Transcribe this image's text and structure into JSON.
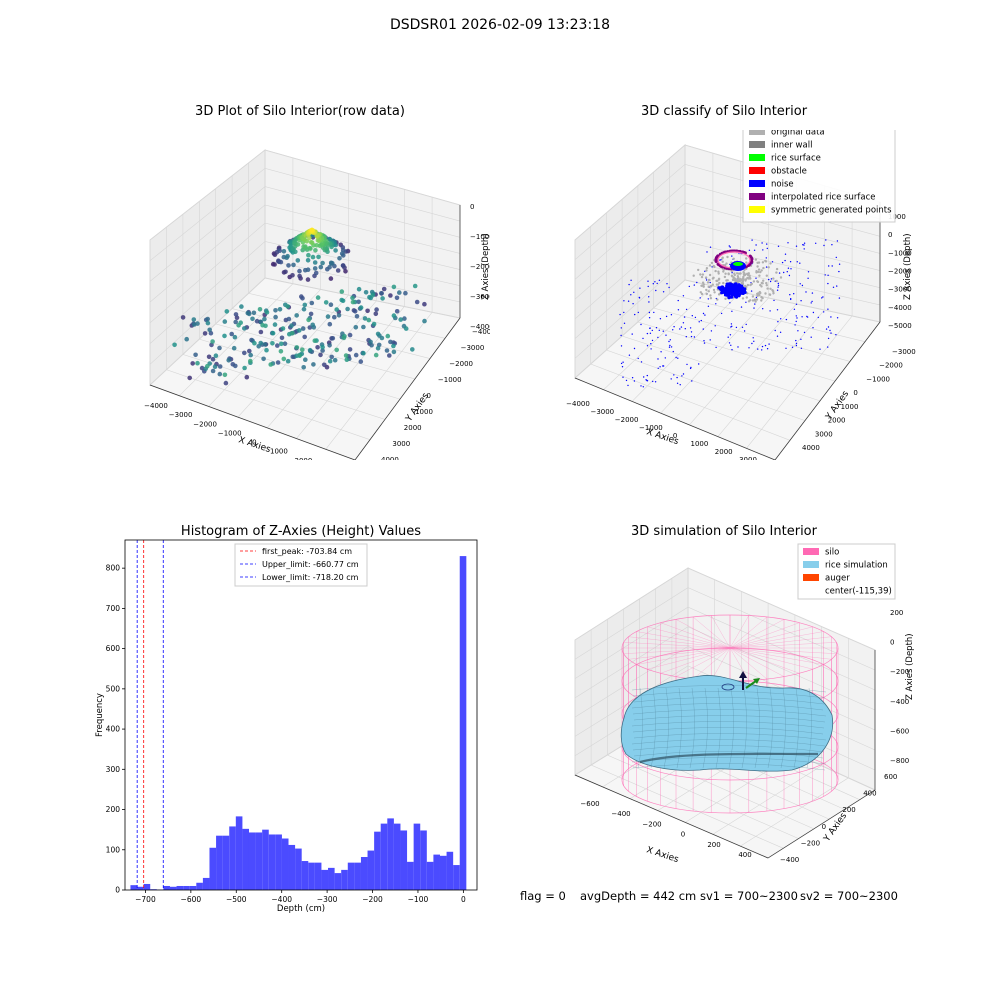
{
  "figure_title": "DSDSR01 2026-02-09 13:23:18",
  "chart_data": [
    {
      "type": "scatter",
      "projection": "3d",
      "title": "3D Plot of Silo Interior(row data)",
      "xlabel": "X Axies",
      "ylabel": "Y Axies",
      "zlabel": "Z Axies (Depth)",
      "x_ticks": [
        "−4000",
        "−3000",
        "−2000",
        "−1000",
        "0",
        "1000",
        "2000",
        "3000"
      ],
      "y_ticks": [
        "−4000",
        "−3000",
        "−2000",
        "−1000",
        "0",
        "1000",
        "2000",
        "3000",
        "4000"
      ],
      "z_ticks": [
        "0",
        "−1000",
        "−2000",
        "−3000",
        "−4000"
      ],
      "colormap": "viridis",
      "grid": true
    },
    {
      "type": "scatter",
      "projection": "3d",
      "title": "3D classify of Silo Interior",
      "xlabel": "X Axies",
      "ylabel": "Y Axies",
      "zlabel": "Z Axies (Depth)",
      "x_ticks": [
        "−4000",
        "−3000",
        "−2000",
        "−1000",
        "0",
        "1000",
        "2000",
        "3000"
      ],
      "y_ticks": [
        "−3000",
        "−2000",
        "−1000",
        "0",
        "1000",
        "2000",
        "3000",
        "4000"
      ],
      "z_ticks": [
        "1000",
        "0",
        "−1000",
        "−2000",
        "−3000",
        "−4000",
        "−5000"
      ],
      "legend_position": "top-right",
      "legend": [
        {
          "label": "original data",
          "color": "#b0b0b0"
        },
        {
          "label": "inner wall",
          "color": "#808080"
        },
        {
          "label": "rice surface",
          "color": "#00ff00"
        },
        {
          "label": "obstacle",
          "color": "#ff0000"
        },
        {
          "label": "noise",
          "color": "#0000ff"
        },
        {
          "label": "interpolated rice surface",
          "color": "#800080"
        },
        {
          "label": "symmetric generated points",
          "color": "#ffff00"
        }
      ],
      "grid": true
    },
    {
      "type": "bar",
      "title": "Histogram of Z-Axies (Height) Values",
      "xlabel": "Depth (cm)",
      "ylabel": "Frequency",
      "xlim": [
        -745,
        30
      ],
      "ylim": [
        0,
        870
      ],
      "x_ticks": [
        -700,
        -600,
        -500,
        -400,
        -300,
        -200,
        -100,
        0
      ],
      "x_tick_labels": [
        "−700",
        "−600",
        "−500",
        "−400",
        "−300",
        "−200",
        "−100",
        "0"
      ],
      "y_ticks": [
        0,
        100,
        200,
        300,
        400,
        500,
        600,
        700,
        800
      ],
      "bar_color": "#4b4bff",
      "bin_width": 14.5,
      "bin_start": -733,
      "counts": [
        12,
        8,
        15,
        2,
        1,
        10,
        8,
        10,
        10,
        10,
        18,
        30,
        105,
        135,
        135,
        158,
        183,
        152,
        143,
        143,
        150,
        138,
        138,
        128,
        112,
        103,
        72,
        68,
        68,
        50,
        55,
        42,
        50,
        68,
        68,
        82,
        98,
        145,
        165,
        178,
        165,
        148,
        70,
        165,
        148,
        70,
        88,
        85,
        95,
        62,
        830
      ],
      "vlines": [
        {
          "label": "first_peak: -703.84 cm",
          "x": -703.84,
          "color": "#ff0000"
        },
        {
          "label": "Upper_limit: -660.77 cm",
          "x": -660.77,
          "color": "#0000ff"
        },
        {
          "label": "Lower_limit: -718.20 cm",
          "x": -718.2,
          "color": "#0000ff"
        }
      ],
      "legend_position": "top-center"
    },
    {
      "type": "surface",
      "projection": "3d",
      "title": "3D simulation of Silo Interior",
      "xlabel": "X Axies",
      "ylabel": "Y Axies",
      "zlabel": "Z Axies (Depth)",
      "x_ticks": [
        "−600",
        "−400",
        "−200",
        "0",
        "200",
        "400"
      ],
      "y_ticks": [
        "−400",
        "−200",
        "0",
        "200",
        "400",
        "600"
      ],
      "z_ticks": [
        "200",
        "0",
        "−200",
        "−400",
        "−600",
        "−800"
      ],
      "legend_position": "top-right",
      "legend": [
        {
          "label": "silo",
          "color": "#ff69b4"
        },
        {
          "label": "rice simulation",
          "color": "#87ceeb"
        },
        {
          "label": "auger",
          "color": "#ff4500"
        },
        {
          "label": "center(-115,39)",
          "color": ""
        }
      ],
      "grid": true
    }
  ],
  "status": {
    "flag": "flag = 0",
    "avg_depth": "avgDepth = 442 cm",
    "sv1": "sv1 = 700~2300",
    "sv2": "sv2 = 700~2300"
  }
}
